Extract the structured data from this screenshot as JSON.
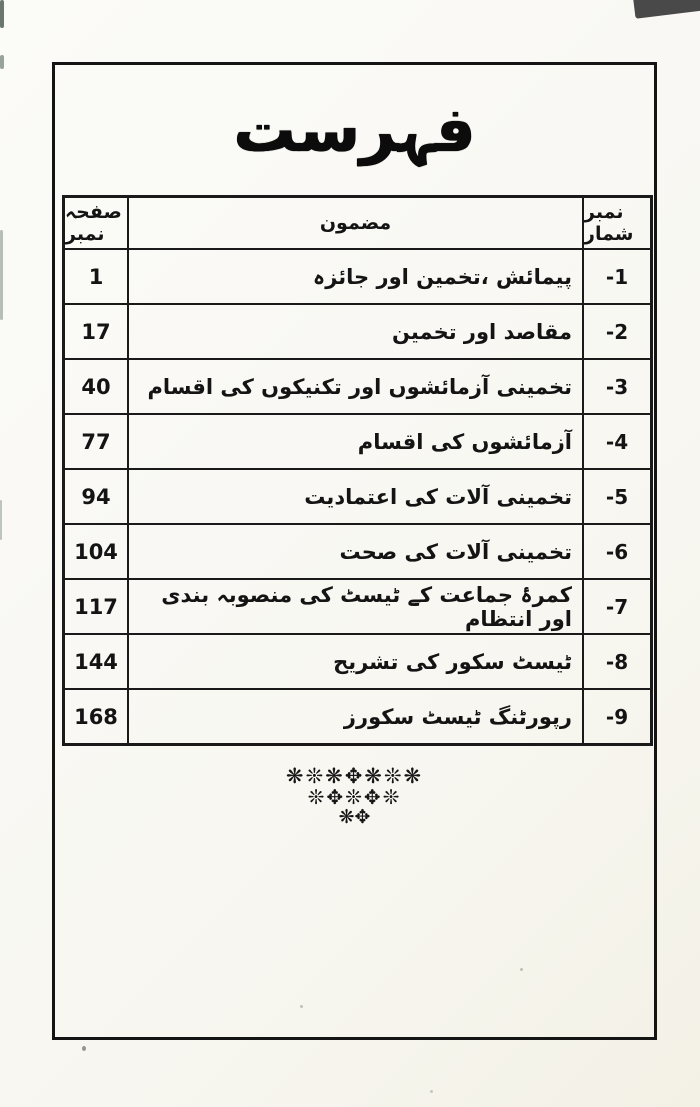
{
  "page": {
    "title": "فہرست"
  },
  "table": {
    "headers": {
      "page_number": "صفحہ نمبر",
      "subject": "مضمون",
      "serial": "نمبر شمار"
    },
    "rows": [
      {
        "serial": "-1",
        "subject": "پیمائش ،تخمین اور جائزہ",
        "page": "1"
      },
      {
        "serial": "-2",
        "subject": "مقاصد اور تخمین",
        "page": "17"
      },
      {
        "serial": "-3",
        "subject": "تخمینی آزمائشوں اور تکنیکوں کی اقسام",
        "page": "40"
      },
      {
        "serial": "-4",
        "subject": "آزمائشوں کی اقسام",
        "page": "77"
      },
      {
        "serial": "-5",
        "subject": "تخمینی آلات کی اعتمادیت",
        "page": "94"
      },
      {
        "serial": "-6",
        "subject": "تخمینی آلات کی صحت",
        "page": "104"
      },
      {
        "serial": "-7",
        "subject": "کمرۂ جماعت کے ٹیسٹ کی منصوبہ بندی اور انتظام",
        "page": "117"
      },
      {
        "serial": "-8",
        "subject": "ٹیسٹ سکور کی تشریح",
        "page": "144"
      },
      {
        "serial": "-9",
        "subject": "رپورٹنگ ٹیسٹ سکورز",
        "page": "168"
      }
    ]
  },
  "ornament": {
    "row1": "❋❊❋✥❋❊❋",
    "row2": "❊✥❊✥❊",
    "row3": "❋✥"
  },
  "colors": {
    "ink": "#141414",
    "paper": "#f8f7f2"
  }
}
